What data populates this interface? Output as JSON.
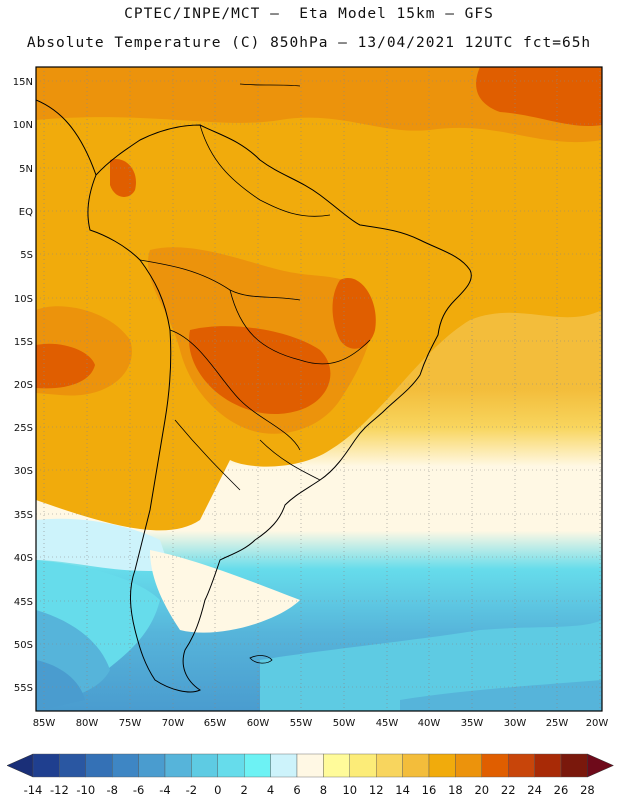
{
  "header": {
    "line1": "CPTEC/INPE/MCT –  Eta Model 15km – GFS",
    "line2": "Absolute Temperature (C) 850hPa – 13/04/2021 12UTC fct=65h"
  },
  "map": {
    "lat_labels": [
      "15N",
      "10N",
      "5N",
      "EQ",
      "5S",
      "10S",
      "15S",
      "20S",
      "25S",
      "30S",
      "35S",
      "40S",
      "45S",
      "50S",
      "55S"
    ],
    "lon_labels": [
      "85W",
      "80W",
      "75W",
      "70W",
      "65W",
      "60W",
      "55W",
      "50W",
      "45W",
      "40W",
      "35W",
      "30W",
      "25W",
      "20W"
    ],
    "gridlines": true
  },
  "colorbar": {
    "labels": [
      "-14",
      "-12",
      "-10",
      "-8",
      "-6",
      "-4",
      "-2",
      "0",
      "2",
      "4",
      "6",
      "8",
      "10",
      "12",
      "14",
      "16",
      "18",
      "20",
      "22",
      "24",
      "26",
      "28"
    ],
    "colors": [
      "#1f3f8f",
      "#2a57a2",
      "#3471b6",
      "#3e86c4",
      "#4a9ccf",
      "#56b4da",
      "#5ecbe3",
      "#66dceb",
      "#6df2f4",
      "#cdf3fb",
      "#fff8e4",
      "#fffb9a",
      "#fcec78",
      "#f8d55e",
      "#f3bd3b",
      "#f1ab0c",
      "#ec930c",
      "#e05e00",
      "#c8450a",
      "#a82a06",
      "#7a180c"
    ],
    "under_color": "#1a2f78",
    "over_color": "#6e0a1a"
  }
}
